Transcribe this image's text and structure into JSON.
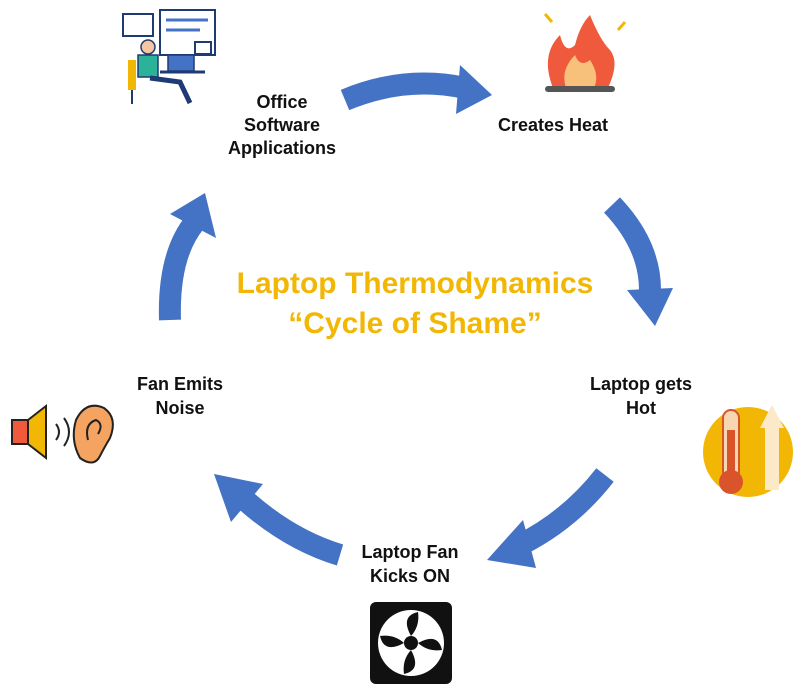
{
  "title": {
    "lines": [
      "Laptop Thermodynamics",
      "“Cycle of Shame”"
    ]
  },
  "nodes": [
    {
      "lines": [
        "Office",
        "Software",
        "Applications"
      ]
    },
    {
      "lines": [
        "Creates Heat"
      ]
    },
    {
      "lines": [
        "Laptop gets",
        "Hot"
      ]
    },
    {
      "lines": [
        "Laptop Fan",
        "Kicks ON"
      ]
    },
    {
      "lines": [
        "Fan Emits",
        "Noise"
      ]
    }
  ]
}
